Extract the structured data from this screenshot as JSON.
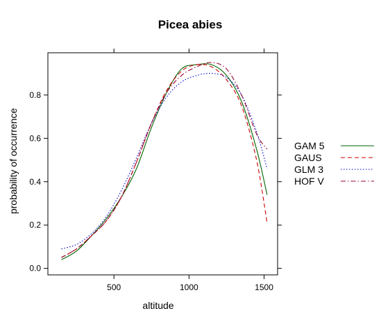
{
  "chart_data": {
    "type": "line",
    "title": "Picea abies",
    "xlabel": "altitude",
    "ylabel": "probability of occurrence",
    "xlim": [
      60,
      1590
    ],
    "ylim": [
      -0.03,
      0.995
    ],
    "xticks": [
      500,
      1000,
      1500
    ],
    "yticks": [
      0.0,
      0.2,
      0.4,
      0.6,
      0.8
    ],
    "ytick_labels": [
      "0.0",
      "0.2",
      "0.4",
      "0.6",
      "0.8"
    ],
    "legend_position": "right",
    "series": [
      {
        "name": "GAM 5",
        "color": "#006400",
        "dash": "solid",
        "x": [
          150,
          250,
          350,
          450,
          550,
          650,
          750,
          850,
          950,
          1050,
          1150,
          1250,
          1350,
          1450,
          1520
        ],
        "y": [
          0.04,
          0.08,
          0.15,
          0.23,
          0.33,
          0.46,
          0.65,
          0.81,
          0.92,
          0.94,
          0.94,
          0.89,
          0.77,
          0.55,
          0.34
        ]
      },
      {
        "name": "GAUS",
        "color": "#cc0000",
        "dash": "dashed",
        "x": [
          150,
          250,
          350,
          450,
          550,
          650,
          750,
          850,
          950,
          1050,
          1150,
          1250,
          1350,
          1450,
          1520
        ],
        "y": [
          0.05,
          0.09,
          0.15,
          0.22,
          0.33,
          0.49,
          0.67,
          0.82,
          0.91,
          0.94,
          0.93,
          0.87,
          0.75,
          0.5,
          0.21
        ]
      },
      {
        "name": "GLM 3",
        "color": "#0000cc",
        "dash": "dotted",
        "x": [
          150,
          250,
          350,
          450,
          550,
          650,
          750,
          850,
          950,
          1050,
          1150,
          1250,
          1350,
          1450,
          1520
        ],
        "y": [
          0.09,
          0.11,
          0.16,
          0.24,
          0.36,
          0.51,
          0.67,
          0.79,
          0.86,
          0.89,
          0.9,
          0.88,
          0.8,
          0.63,
          0.46
        ]
      },
      {
        "name": "HOF V",
        "color": "#990033",
        "dash": "dashdot",
        "x": [
          150,
          250,
          350,
          450,
          550,
          650,
          750,
          850,
          950,
          1050,
          1150,
          1250,
          1350,
          1450,
          1520
        ],
        "y": [
          0.05,
          0.09,
          0.15,
          0.22,
          0.33,
          0.49,
          0.67,
          0.81,
          0.89,
          0.93,
          0.95,
          0.92,
          0.8,
          0.62,
          0.55
        ]
      }
    ]
  }
}
